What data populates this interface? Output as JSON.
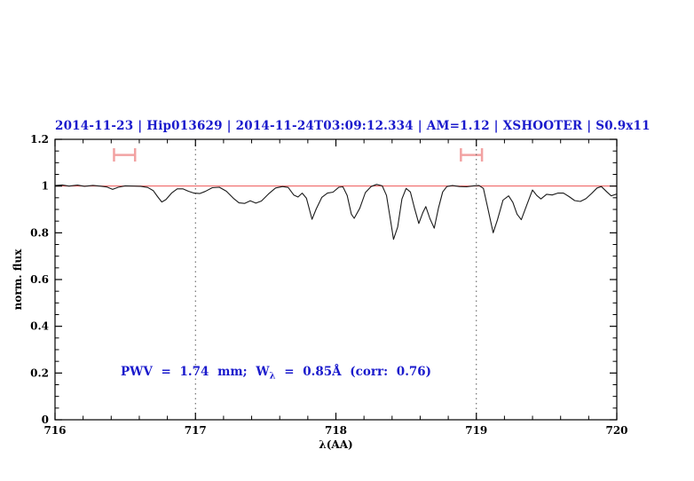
{
  "title": "2014-11-23 | Hip013629 | 2014-11-24T03:09:12.334 | AM=1.12 | XSHOOTER | S0.9x11",
  "title_color": "#1a1acc",
  "annotation": {
    "pre": "PWV = 1.74 mm; W",
    "sub": "λ",
    "post": " = 0.85Å (corr: 0.76)",
    "color": "#1a1acc"
  },
  "axes": {
    "xlabel": "λ(AA)",
    "ylabel": "norm. flux",
    "x_tick_labels": [
      "716",
      "717",
      "718",
      "719",
      "720"
    ],
    "y_tick_labels": [
      "0",
      "0.2",
      "0.4",
      "0.6",
      "0.8",
      "1",
      "1.2"
    ]
  },
  "chart_data": {
    "type": "line",
    "title": "2014-11-23 | Hip013629 | 2014-11-24T03:09:12.334 | AM=1.12 | XSHOOTER | S0.9x11",
    "xlabel": "λ(AA)",
    "ylabel": "norm. flux",
    "xlim": [
      716,
      720
    ],
    "ylim": [
      0,
      1.2
    ],
    "x_major_ticks": [
      716,
      717,
      718,
      719,
      720
    ],
    "x_minor_step": 0.2,
    "y_major_ticks": [
      0,
      0.2,
      0.4,
      0.6,
      0.8,
      1,
      1.2
    ],
    "y_minor_step": 0.05,
    "grid": false,
    "continuum_level": 1.0,
    "vlines": [
      717,
      719
    ],
    "range_markers": [
      {
        "x1": 716.42,
        "x2": 716.57,
        "y": 1.133,
        "cap_y1": 1.105,
        "cap_y2": 1.162
      },
      {
        "x1": 718.89,
        "x2": 719.04,
        "y": 1.133,
        "cap_y1": 1.105,
        "cap_y2": 1.162
      }
    ],
    "colors": {
      "spectrum": "#1a1a1a",
      "continuum": "#ee5555",
      "marker": "#f2a2a2",
      "vline": "#555555",
      "frame": "#000000"
    },
    "series": [
      {
        "name": "normalized spectrum",
        "points": [
          [
            716.0,
            1.002
          ],
          [
            716.05,
            1.005
          ],
          [
            716.1,
            1.0
          ],
          [
            716.16,
            1.004
          ],
          [
            716.21,
            0.999
          ],
          [
            716.27,
            1.003
          ],
          [
            716.32,
            1.0
          ],
          [
            716.37,
            0.996
          ],
          [
            716.41,
            0.986
          ],
          [
            716.45,
            0.995
          ],
          [
            716.5,
            1.001
          ],
          [
            716.56,
            1.0
          ],
          [
            716.61,
            0.999
          ],
          [
            716.66,
            0.994
          ],
          [
            716.7,
            0.98
          ],
          [
            716.73,
            0.955
          ],
          [
            716.76,
            0.932
          ],
          [
            716.79,
            0.942
          ],
          [
            716.83,
            0.97
          ],
          [
            716.87,
            0.988
          ],
          [
            716.91,
            0.988
          ],
          [
            716.95,
            0.978
          ],
          [
            716.99,
            0.97
          ],
          [
            717.03,
            0.968
          ],
          [
            717.07,
            0.977
          ],
          [
            717.12,
            0.993
          ],
          [
            717.17,
            0.995
          ],
          [
            717.22,
            0.978
          ],
          [
            717.27,
            0.948
          ],
          [
            717.31,
            0.928
          ],
          [
            717.35,
            0.926
          ],
          [
            717.39,
            0.937
          ],
          [
            717.43,
            0.927
          ],
          [
            717.47,
            0.936
          ],
          [
            717.52,
            0.966
          ],
          [
            717.57,
            0.992
          ],
          [
            717.62,
            0.998
          ],
          [
            717.66,
            0.994
          ],
          [
            717.7,
            0.962
          ],
          [
            717.73,
            0.953
          ],
          [
            717.76,
            0.97
          ],
          [
            717.79,
            0.948
          ],
          [
            717.83,
            0.858
          ],
          [
            717.86,
            0.902
          ],
          [
            717.9,
            0.952
          ],
          [
            717.94,
            0.97
          ],
          [
            717.98,
            0.974
          ],
          [
            718.02,
            0.995
          ],
          [
            718.05,
            0.997
          ],
          [
            718.08,
            0.96
          ],
          [
            718.11,
            0.88
          ],
          [
            718.13,
            0.862
          ],
          [
            718.17,
            0.905
          ],
          [
            718.21,
            0.972
          ],
          [
            718.25,
            0.998
          ],
          [
            718.29,
            1.007
          ],
          [
            718.33,
            1.001
          ],
          [
            718.36,
            0.96
          ],
          [
            718.39,
            0.85
          ],
          [
            718.41,
            0.772
          ],
          [
            718.44,
            0.825
          ],
          [
            718.47,
            0.945
          ],
          [
            718.5,
            0.99
          ],
          [
            718.53,
            0.975
          ],
          [
            718.56,
            0.905
          ],
          [
            718.59,
            0.84
          ],
          [
            718.62,
            0.888
          ],
          [
            718.64,
            0.912
          ],
          [
            718.67,
            0.86
          ],
          [
            718.7,
            0.82
          ],
          [
            718.73,
            0.905
          ],
          [
            718.76,
            0.975
          ],
          [
            718.79,
            0.998
          ],
          [
            718.83,
            1.002
          ],
          [
            718.88,
            0.998
          ],
          [
            718.93,
            0.997
          ],
          [
            718.98,
            1.001
          ],
          [
            719.02,
            1.002
          ],
          [
            719.05,
            0.99
          ],
          [
            719.08,
            0.91
          ],
          [
            719.12,
            0.8
          ],
          [
            719.15,
            0.855
          ],
          [
            719.19,
            0.94
          ],
          [
            719.23,
            0.958
          ],
          [
            719.26,
            0.93
          ],
          [
            719.29,
            0.88
          ],
          [
            719.32,
            0.856
          ],
          [
            719.36,
            0.92
          ],
          [
            719.4,
            0.983
          ],
          [
            719.43,
            0.96
          ],
          [
            719.46,
            0.945
          ],
          [
            719.5,
            0.965
          ],
          [
            719.54,
            0.962
          ],
          [
            719.58,
            0.97
          ],
          [
            719.62,
            0.97
          ],
          [
            719.66,
            0.955
          ],
          [
            719.7,
            0.938
          ],
          [
            719.74,
            0.934
          ],
          [
            719.78,
            0.946
          ],
          [
            719.82,
            0.968
          ],
          [
            719.86,
            0.992
          ],
          [
            719.89,
            0.998
          ],
          [
            719.93,
            0.975
          ],
          [
            719.96,
            0.958
          ],
          [
            720.0,
            0.966
          ]
        ]
      }
    ]
  }
}
